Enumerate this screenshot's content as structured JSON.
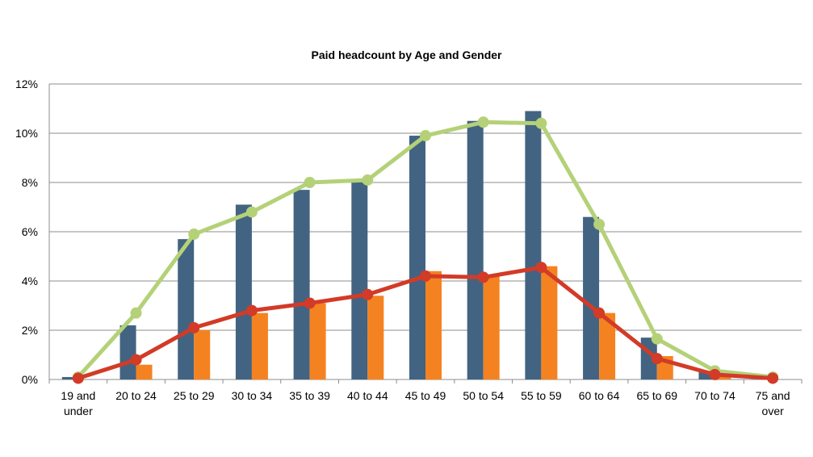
{
  "chart_data": {
    "type": "bar",
    "title": "Paid headcount by Age and Gender",
    "xlabel": "",
    "ylabel": "",
    "ylim": [
      0,
      12
    ],
    "yticks": [
      0,
      2,
      4,
      6,
      8,
      10,
      12
    ],
    "ytick_labels": [
      "0%",
      "2%",
      "4%",
      "6%",
      "8%",
      "10%",
      "12%"
    ],
    "grid": true,
    "legend": "none",
    "categories": [
      [
        "19 and",
        "under"
      ],
      [
        "20 to 24"
      ],
      [
        "25 to 29"
      ],
      [
        "30 to 34"
      ],
      [
        "35 to 39"
      ],
      [
        "40 to 44"
      ],
      [
        "45 to 49"
      ],
      [
        "50 to 54"
      ],
      [
        "55 to 59"
      ],
      [
        "60 to 64"
      ],
      [
        "65 to 69"
      ],
      [
        "70 to 74"
      ],
      [
        "75 and",
        "over"
      ]
    ],
    "bar_series": [
      {
        "color": "#426482",
        "values": [
          0.1,
          2.2,
          5.7,
          7.1,
          7.7,
          8.0,
          9.9,
          10.5,
          10.9,
          6.6,
          1.7,
          0.3,
          0.0
        ]
      },
      {
        "color": "#f58220",
        "values": [
          0.0,
          0.6,
          2.0,
          2.7,
          3.1,
          3.4,
          4.4,
          4.2,
          4.6,
          2.7,
          0.95,
          0.2,
          0.0
        ]
      }
    ],
    "line_series": [
      {
        "color": "#b4d178",
        "values": [
          0.1,
          2.7,
          5.9,
          6.8,
          8.0,
          8.1,
          9.9,
          10.45,
          10.4,
          6.3,
          1.65,
          0.35,
          0.1
        ]
      },
      {
        "color": "#d23b27",
        "values": [
          0.05,
          0.8,
          2.1,
          2.8,
          3.1,
          3.45,
          4.2,
          4.15,
          4.55,
          2.7,
          0.85,
          0.2,
          0.05
        ]
      }
    ]
  }
}
